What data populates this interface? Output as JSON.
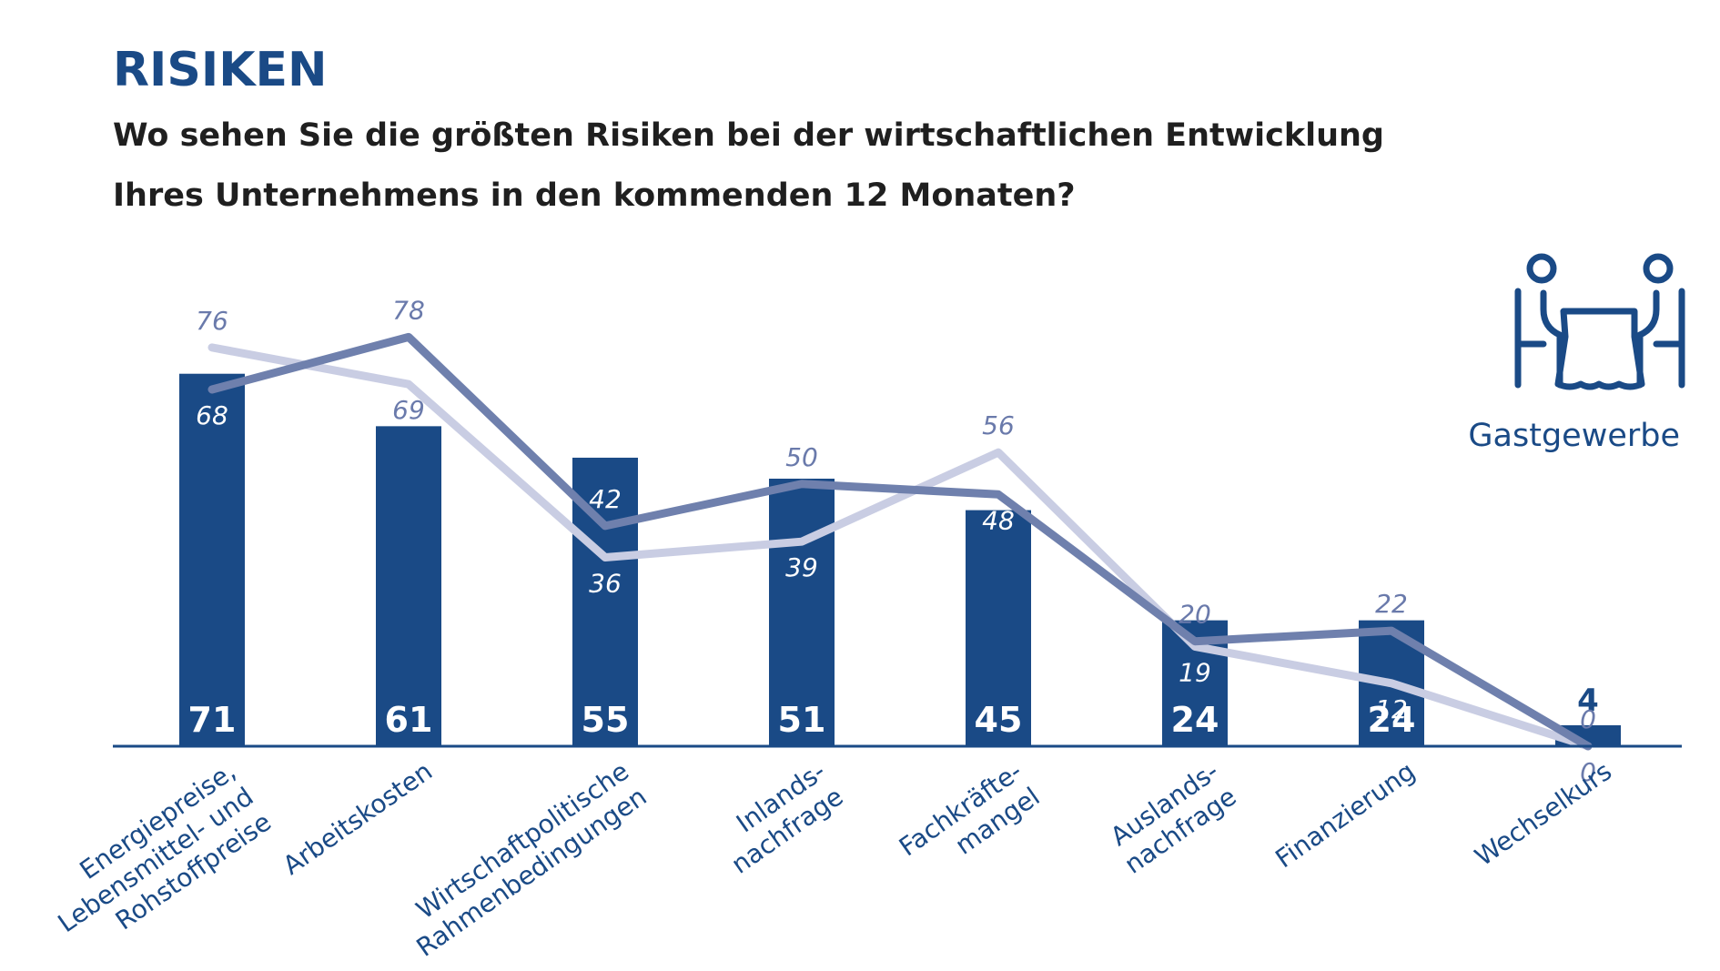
{
  "header": {
    "title": "RISIKEN",
    "subtitle_line1": "Wo sehen Sie die größten Risiken bei der wirtschaftlichen Entwicklung",
    "subtitle_line2": "Ihres Unternehmens in den kommenden 12 Monaten?"
  },
  "sector": {
    "label": "Gastgewerbe",
    "icon": "restaurant-table-icon"
  },
  "colors": {
    "bar": "#1a4a86",
    "line_dark": "#6f80ad",
    "line_light": "#c9cde3",
    "label_dark": "#6a7aab",
    "label_light": "#ffffff",
    "axis": "#1a4a86"
  },
  "chart_data": {
    "type": "bar",
    "title": "Wo sehen Sie die größten Risiken bei der wirtschaftlichen Entwicklung Ihres Unternehmens in den kommenden 12 Monaten?",
    "categories": [
      [
        "Energiepreise,",
        "Lebensmittel- und",
        "Rohstoffpreise"
      ],
      [
        "Arbeitskosten"
      ],
      [
        "Wirtschaftpolitische",
        "Rahmenbedingungen"
      ],
      [
        "Inlands-",
        "nachfrage"
      ],
      [
        "Fachkräfte-",
        "mangel"
      ],
      [
        "Auslands-",
        "nachfrage"
      ],
      [
        "Finanzierung"
      ],
      [
        "Wechselkurs"
      ]
    ],
    "ylim": [
      0,
      85
    ],
    "series": [
      {
        "name": "Balken",
        "kind": "bar",
        "values": [
          71,
          61,
          55,
          51,
          45,
          24,
          24,
          4
        ]
      },
      {
        "name": "Linie dunkel",
        "kind": "line",
        "values": [
          68,
          78,
          42,
          50,
          48,
          20,
          22,
          0
        ]
      },
      {
        "name": "Linie hell",
        "kind": "line",
        "values": [
          76,
          69,
          36,
          39,
          56,
          19,
          12,
          0
        ]
      }
    ]
  }
}
